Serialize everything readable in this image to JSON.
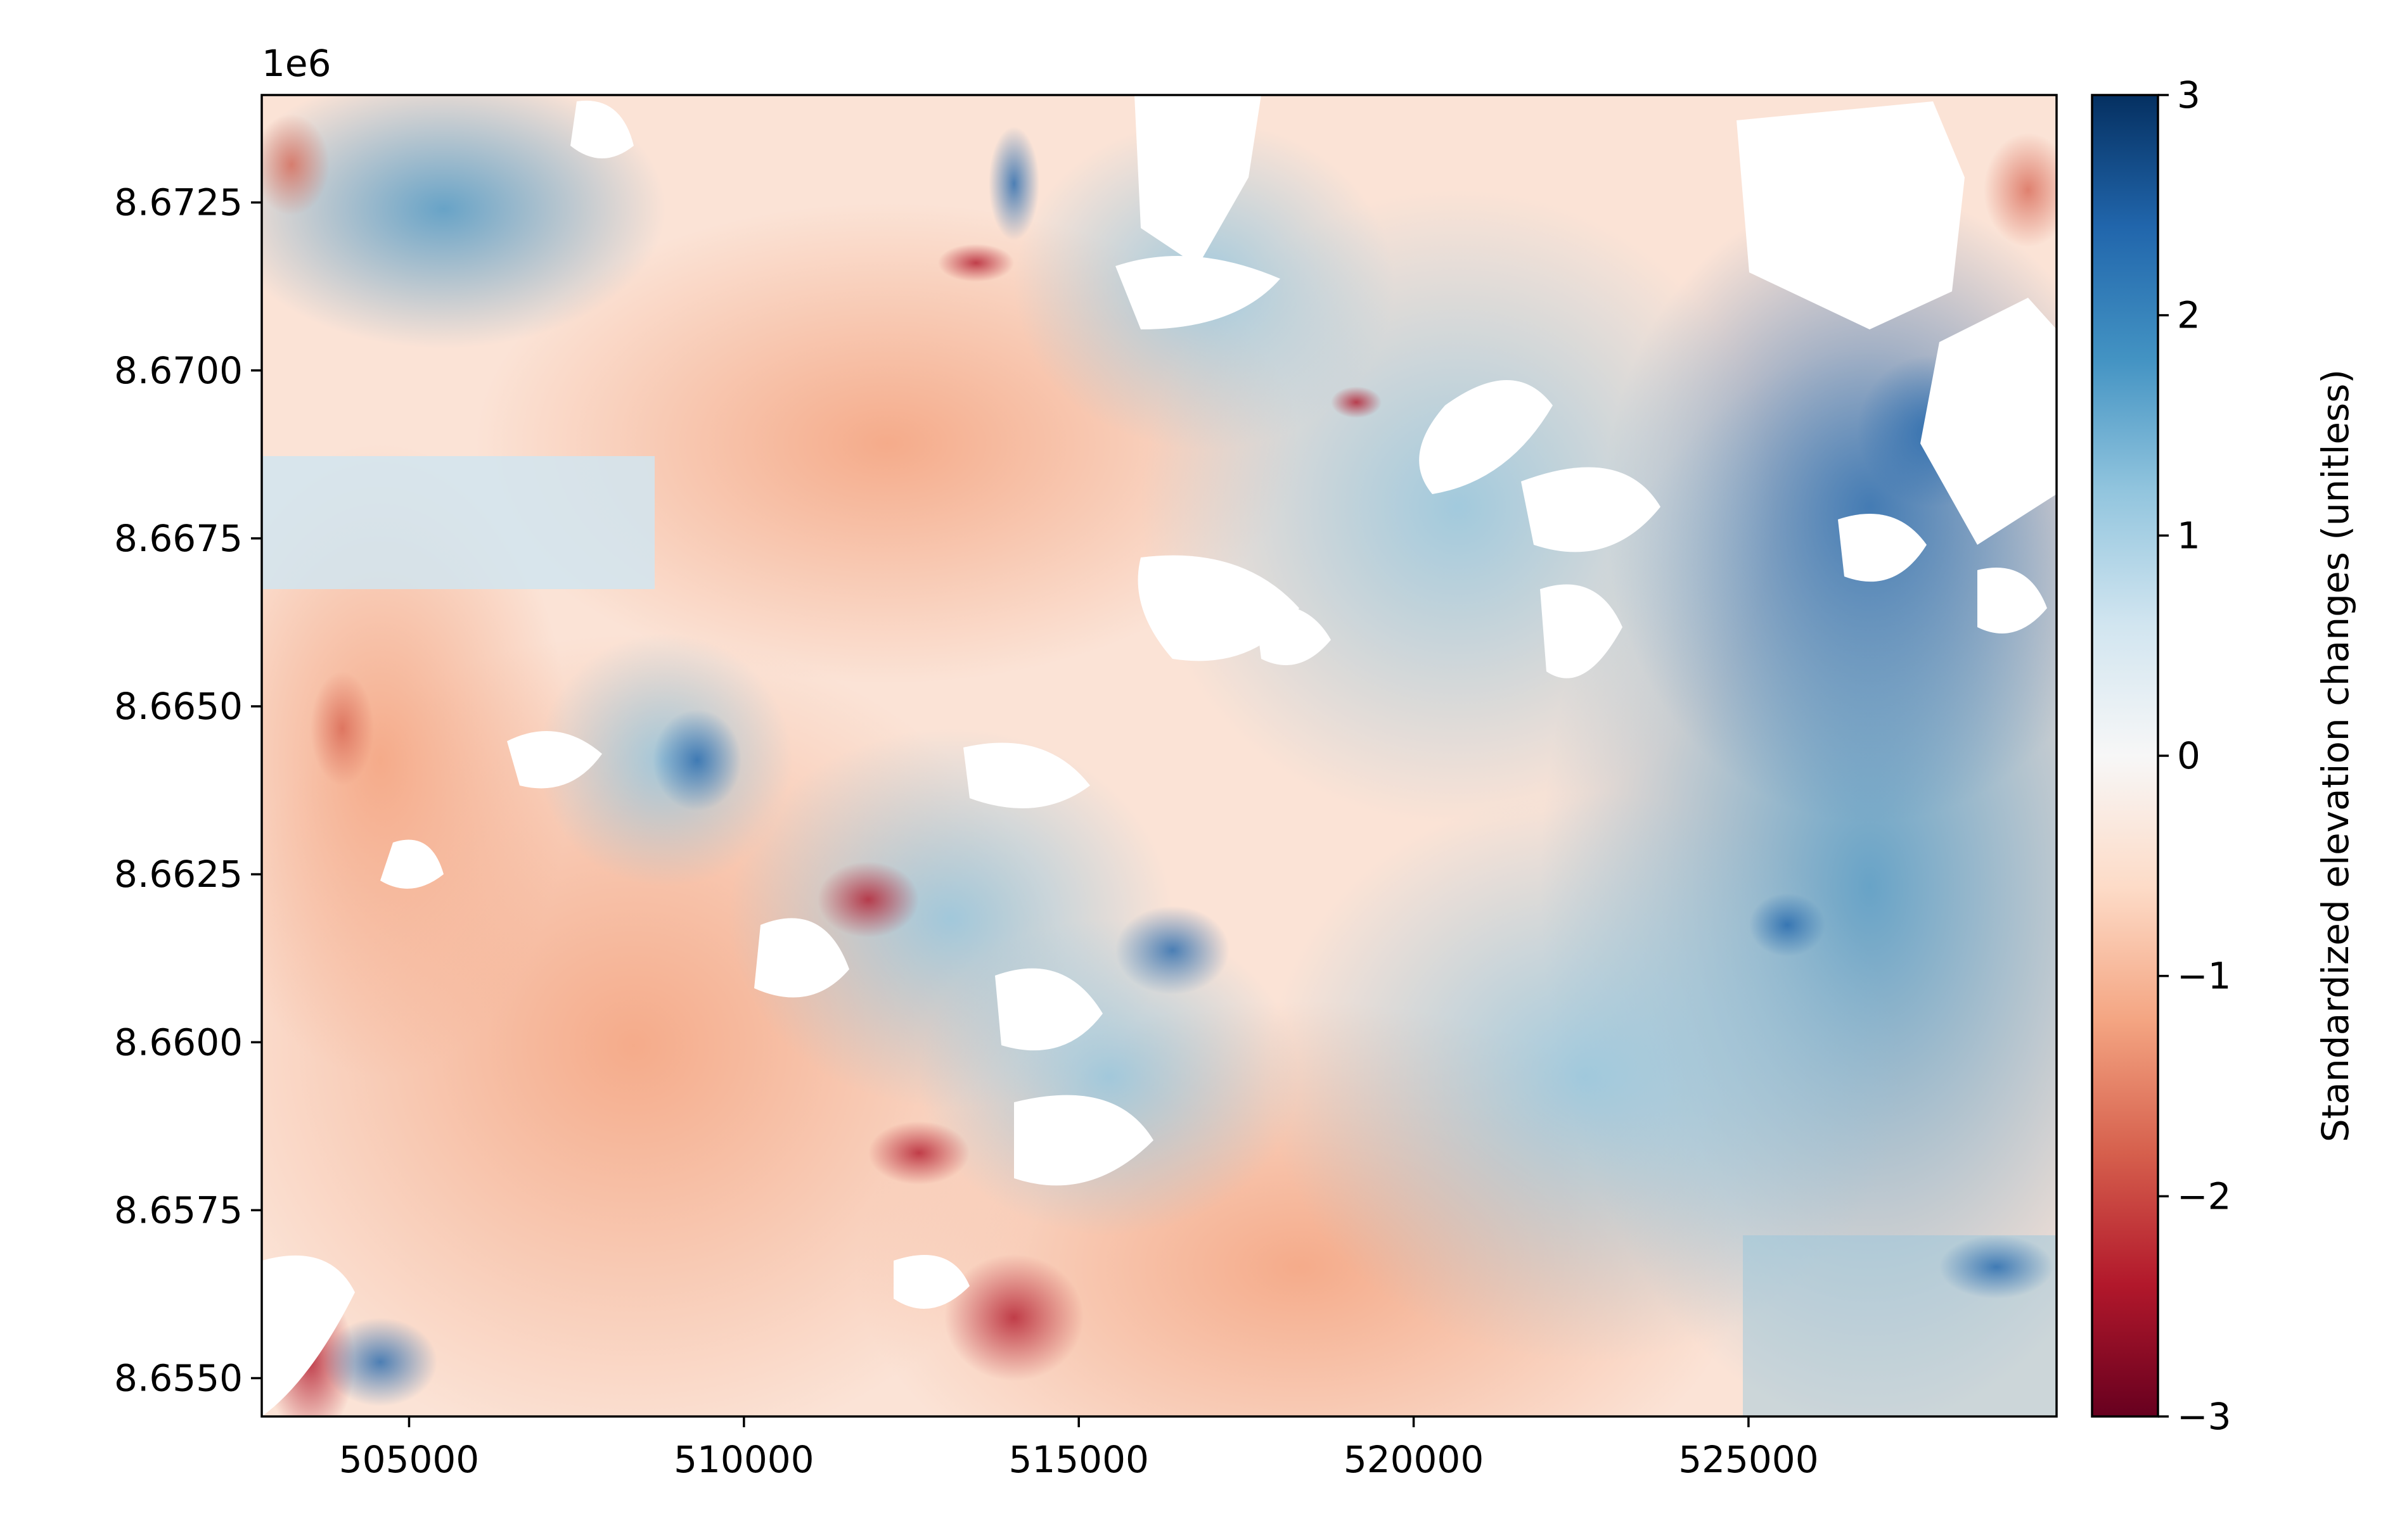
{
  "chart_data": {
    "type": "heatmap",
    "title": "",
    "xlabel": "",
    "ylabel": "",
    "x_ticks": [
      505000,
      510000,
      515000,
      520000,
      525000
    ],
    "x_tick_labels": [
      "505000",
      "510000",
      "515000",
      "520000",
      "525000"
    ],
    "y_offset_label": "1e6",
    "y_ticks": [
      8.6725,
      8.67,
      8.6675,
      8.665,
      8.6625,
      8.66,
      8.6575,
      8.655
    ],
    "y_tick_labels": [
      "8.6725",
      "8.6700",
      "8.6675",
      "8.6650",
      "8.6625",
      "8.6600",
      "8.6575",
      "8.6550"
    ],
    "xlim": [
      502800,
      529600
    ],
    "ylim": [
      8.65443,
      8.6741
    ],
    "colorbar": {
      "label": "Standardized elevation changes (unitless)",
      "colormap": "RdBu",
      "vmin": -3,
      "vmax": 3,
      "ticks": [
        3,
        2,
        1,
        0,
        -1,
        -2,
        -3
      ],
      "tick_labels": [
        "3",
        "2",
        "1",
        "0",
        "−1",
        "−2",
        "−3"
      ]
    },
    "colormap_stops": [
      "#67001f",
      "#b2182b",
      "#d6604d",
      "#f4a582",
      "#fddbc7",
      "#f7f7f7",
      "#d1e5f0",
      "#92c5de",
      "#4393c3",
      "#2166ac",
      "#053061"
    ],
    "nodata_color": "#ffffff",
    "grid": false
  }
}
